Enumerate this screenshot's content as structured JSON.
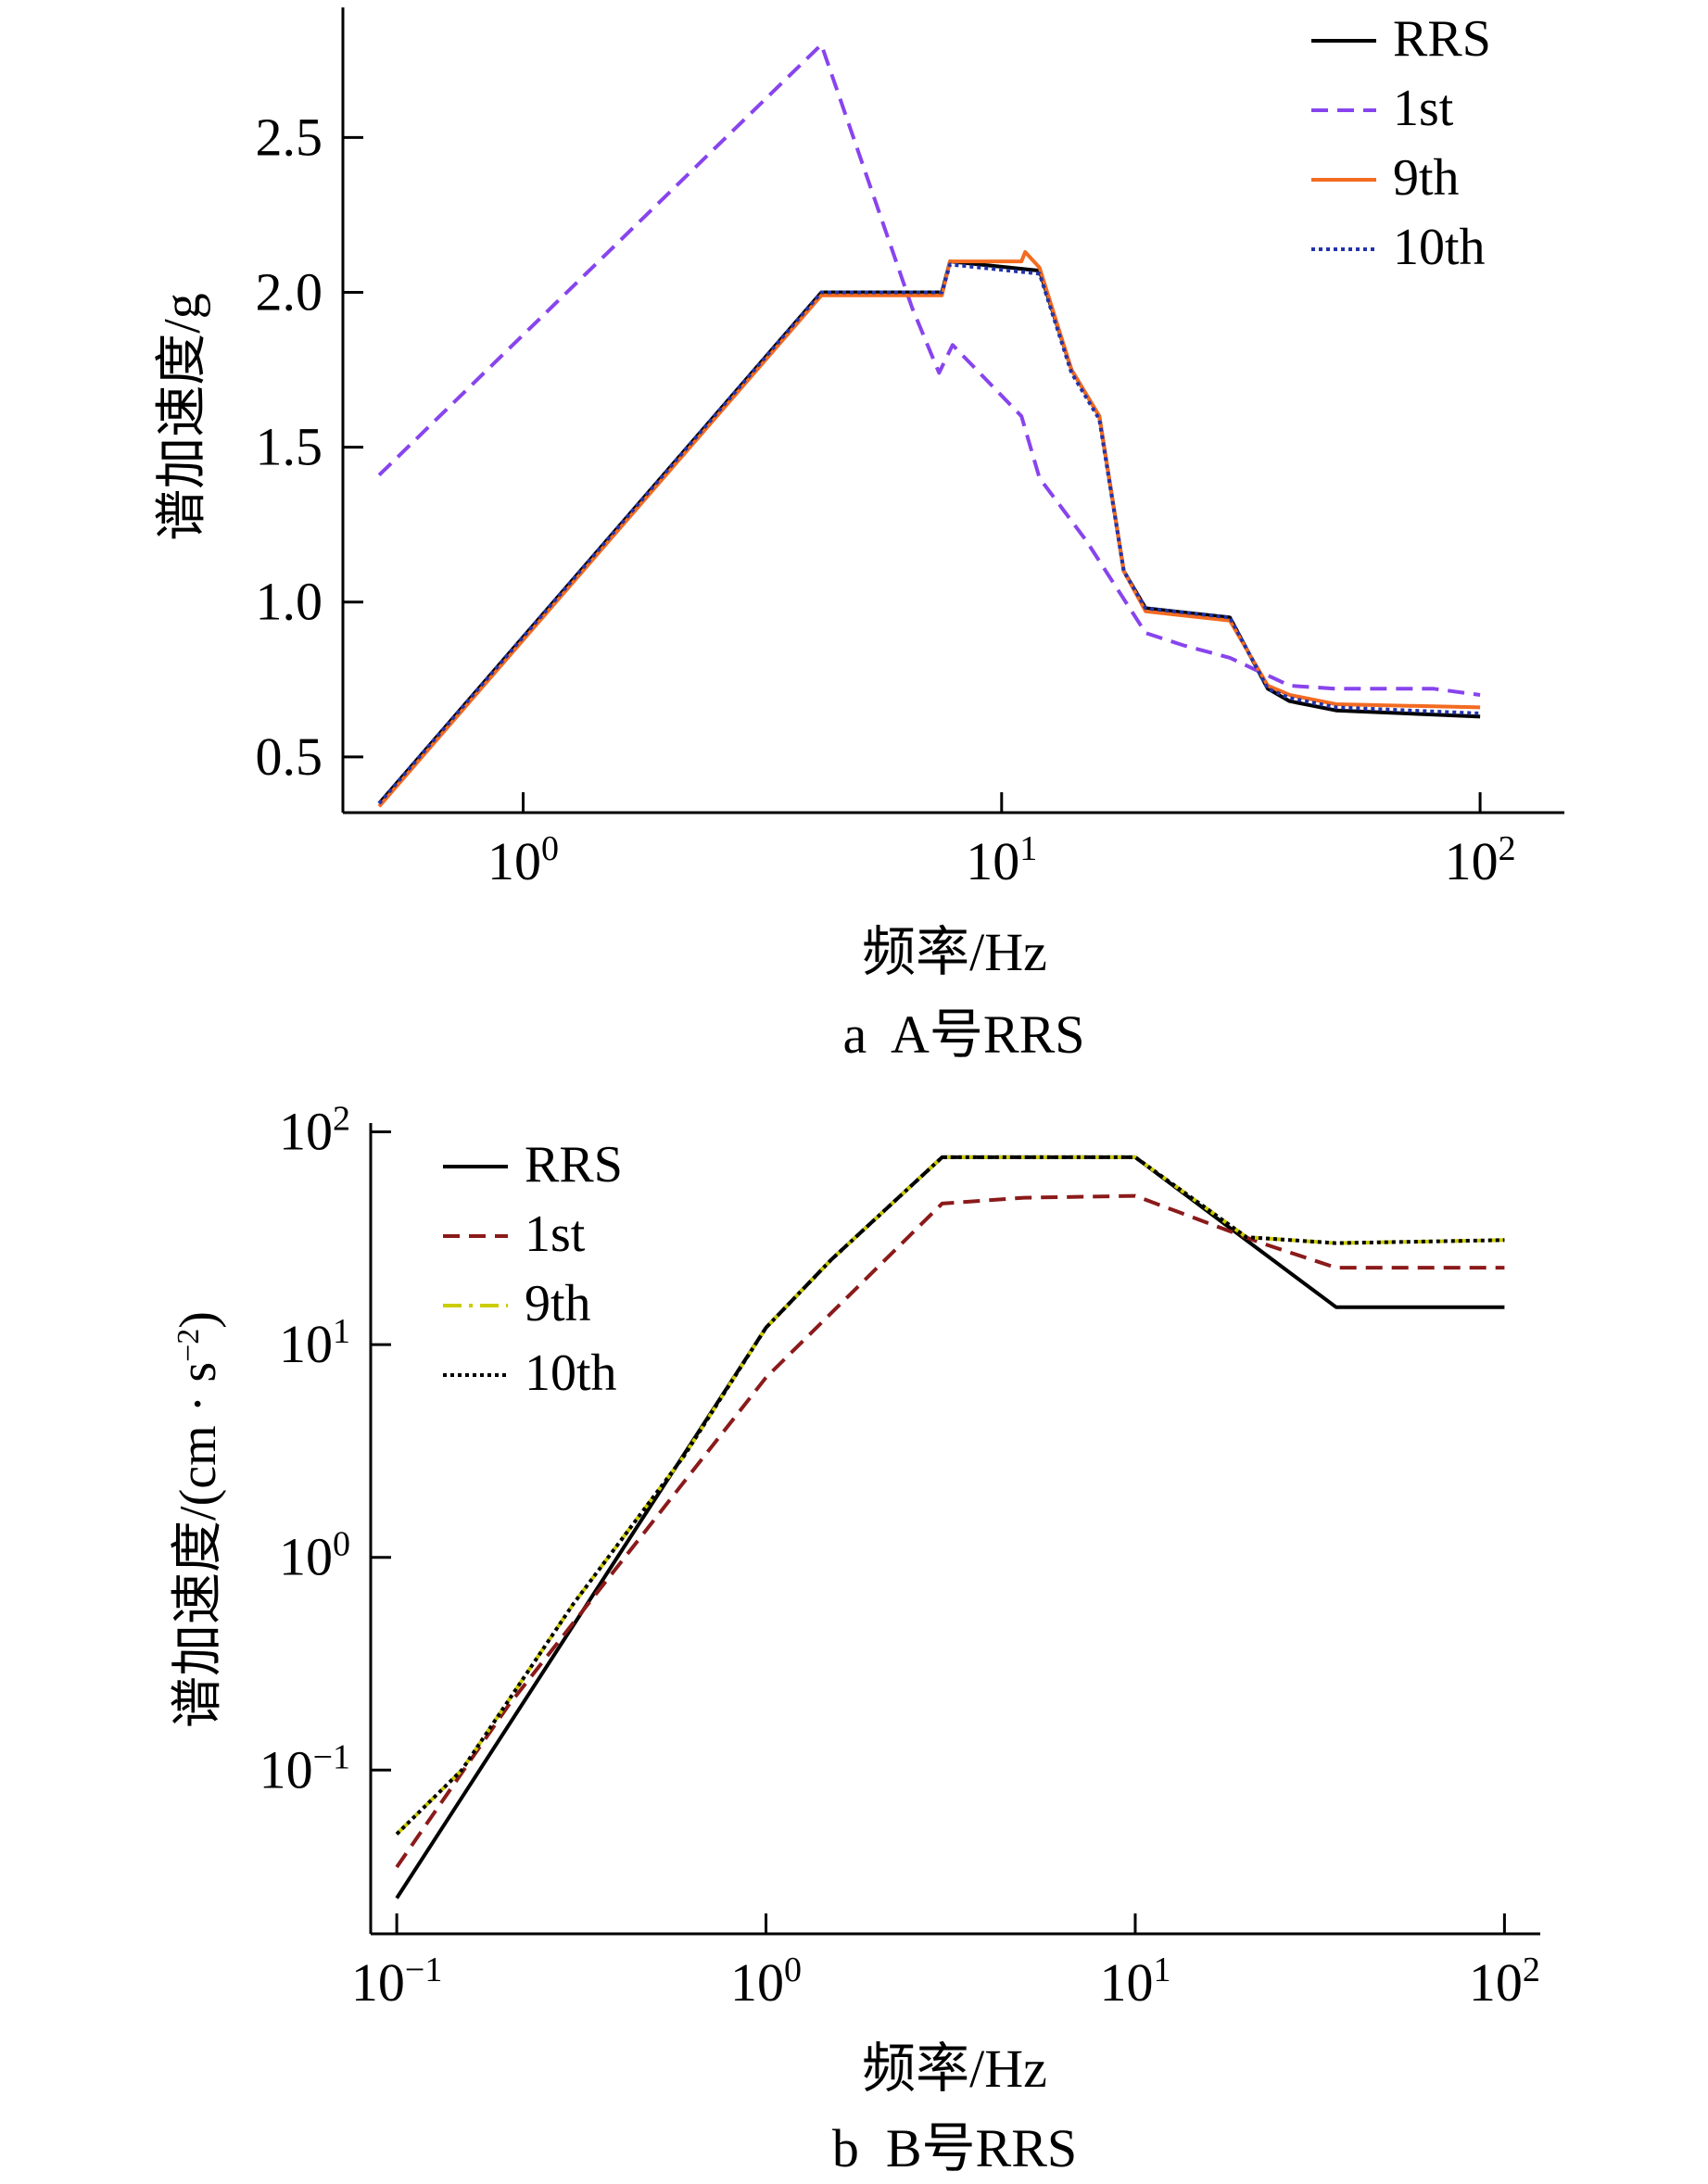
{
  "chart_data": [
    {
      "type": "line",
      "caption": "a  A号RRS",
      "xlabel": "频率/Hz",
      "ylabel": "谱加速度/g",
      "xscale": "log",
      "xlim": [
        0.42,
        150
      ],
      "ylim": [
        0.32,
        2.92
      ],
      "xticks": [
        {
          "base": "10",
          "exp": "0",
          "value": 1
        },
        {
          "base": "10",
          "exp": "1",
          "value": 10
        },
        {
          "base": "10",
          "exp": "2",
          "value": 100
        }
      ],
      "yticks": [
        {
          "label": "0.5",
          "value": 0.5
        },
        {
          "label": "1.0",
          "value": 1.0
        },
        {
          "label": "1.5",
          "value": 1.5
        },
        {
          "label": "2.0",
          "value": 2.0
        },
        {
          "label": "2.5",
          "value": 2.5
        }
      ],
      "legend_position": "top-right",
      "grid": false,
      "series": [
        {
          "name": "RRS",
          "color": "#000000",
          "dash": "solid",
          "points": [
            [
              0.5,
              0.35
            ],
            [
              4.2,
              2.0
            ],
            [
              6.5,
              2.0
            ],
            [
              7.5,
              2.0
            ],
            [
              7.8,
              2.1
            ],
            [
              12,
              2.07
            ],
            [
              14,
              1.75
            ],
            [
              16,
              1.6
            ],
            [
              18,
              1.1
            ],
            [
              20,
              0.98
            ],
            [
              30,
              0.95
            ],
            [
              36,
              0.72
            ],
            [
              40,
              0.68
            ],
            [
              50,
              0.65
            ],
            [
              100,
              0.63
            ]
          ]
        },
        {
          "name": "1st",
          "color": "#8844ee",
          "dash": "dashed",
          "points": [
            [
              0.5,
              1.41
            ],
            [
              4.2,
              2.8
            ],
            [
              6.5,
              1.95
            ],
            [
              7.4,
              1.74
            ],
            [
              7.9,
              1.83
            ],
            [
              11,
              1.6
            ],
            [
              12,
              1.4
            ],
            [
              15,
              1.2
            ],
            [
              20,
              0.9
            ],
            [
              24,
              0.86
            ],
            [
              30,
              0.82
            ],
            [
              40,
              0.73
            ],
            [
              50,
              0.72
            ],
            [
              80,
              0.72
            ],
            [
              100,
              0.7
            ]
          ]
        },
        {
          "name": "9th",
          "color": "#f36b21",
          "dash": "solid",
          "points": [
            [
              0.5,
              0.34
            ],
            [
              4.2,
              1.99
            ],
            [
              6.5,
              1.99
            ],
            [
              7.5,
              1.99
            ],
            [
              7.8,
              2.1
            ],
            [
              11,
              2.1
            ],
            [
              11.2,
              2.13
            ],
            [
              12,
              2.08
            ],
            [
              14,
              1.75
            ],
            [
              16,
              1.6
            ],
            [
              18,
              1.1
            ],
            [
              20,
              0.97
            ],
            [
              30,
              0.94
            ],
            [
              36,
              0.73
            ],
            [
              40,
              0.7
            ],
            [
              50,
              0.67
            ],
            [
              100,
              0.66
            ]
          ]
        },
        {
          "name": "10th",
          "color": "#2233aa",
          "dash": "dotted",
          "points": [
            [
              0.5,
              0.35
            ],
            [
              4.2,
              2.0
            ],
            [
              6.5,
              2.0
            ],
            [
              7.5,
              2.0
            ],
            [
              7.8,
              2.09
            ],
            [
              12,
              2.06
            ],
            [
              14,
              1.74
            ],
            [
              16,
              1.59
            ],
            [
              18,
              1.1
            ],
            [
              20,
              0.98
            ],
            [
              30,
              0.95
            ],
            [
              36,
              0.72
            ],
            [
              40,
              0.69
            ],
            [
              50,
              0.66
            ],
            [
              100,
              0.64
            ]
          ]
        }
      ]
    },
    {
      "type": "line",
      "caption": "b  B号RRS",
      "xlabel": "频率/Hz",
      "ylabel": "谱加速度/(cm · s",
      "ylabel_exp": "−2",
      "ylabel_end": ")",
      "xscale": "log",
      "yscale": "log",
      "xlim": [
        0.085,
        125
      ],
      "ylim": [
        0.017,
        110
      ],
      "xticks": [
        {
          "base": "10",
          "exp": "−1",
          "value": 0.1
        },
        {
          "base": "10",
          "exp": "0",
          "value": 1
        },
        {
          "base": "10",
          "exp": "1",
          "value": 10
        },
        {
          "base": "10",
          "exp": "2",
          "value": 100
        }
      ],
      "yticks": [
        {
          "base": "10",
          "exp": "−1",
          "value": 0.1
        },
        {
          "base": "10",
          "exp": "0",
          "value": 1
        },
        {
          "base": "10",
          "exp": "1",
          "value": 10
        },
        {
          "base": "10",
          "exp": "2",
          "value": 100
        }
      ],
      "legend_position": "top-left",
      "grid": false,
      "series": [
        {
          "name": "RRS",
          "color": "#000000",
          "dash": "solid",
          "points": [
            [
              0.1,
              0.025
            ],
            [
              1.0,
              12
            ],
            [
              1.5,
              25
            ],
            [
              3.0,
              76
            ],
            [
              10,
              76
            ],
            [
              35,
              15
            ],
            [
              100,
              15
            ]
          ]
        },
        {
          "name": "1st",
          "color": "#8b1a1a",
          "dash": "dashed",
          "points": [
            [
              0.1,
              0.035
            ],
            [
              0.2,
              0.2
            ],
            [
              1.0,
              7
            ],
            [
              3.0,
              46
            ],
            [
              5,
              49
            ],
            [
              10,
              50
            ],
            [
              22,
              30
            ],
            [
              35,
              23
            ],
            [
              100,
              23
            ]
          ]
        },
        {
          "name": "9th",
          "color": "#cccc00",
          "dash": "dashdot",
          "points": [
            [
              0.1,
              0.05
            ],
            [
              0.15,
              0.1
            ],
            [
              0.3,
              0.6
            ],
            [
              0.6,
              3
            ],
            [
              1.0,
              12
            ],
            [
              1.5,
              25
            ],
            [
              3.0,
              76
            ],
            [
              10,
              76
            ],
            [
              20,
              32
            ],
            [
              35,
              30
            ],
            [
              100,
              31
            ]
          ]
        },
        {
          "name": "10th",
          "color": "#000000",
          "dash": "dotted",
          "points": [
            [
              0.1,
              0.05
            ],
            [
              0.15,
              0.1
            ],
            [
              0.3,
              0.6
            ],
            [
              0.6,
              3
            ],
            [
              1.0,
              12
            ],
            [
              1.5,
              25
            ],
            [
              3.0,
              76
            ],
            [
              10,
              76
            ],
            [
              20,
              32
            ],
            [
              35,
              30
            ],
            [
              100,
              31
            ]
          ]
        }
      ]
    }
  ]
}
